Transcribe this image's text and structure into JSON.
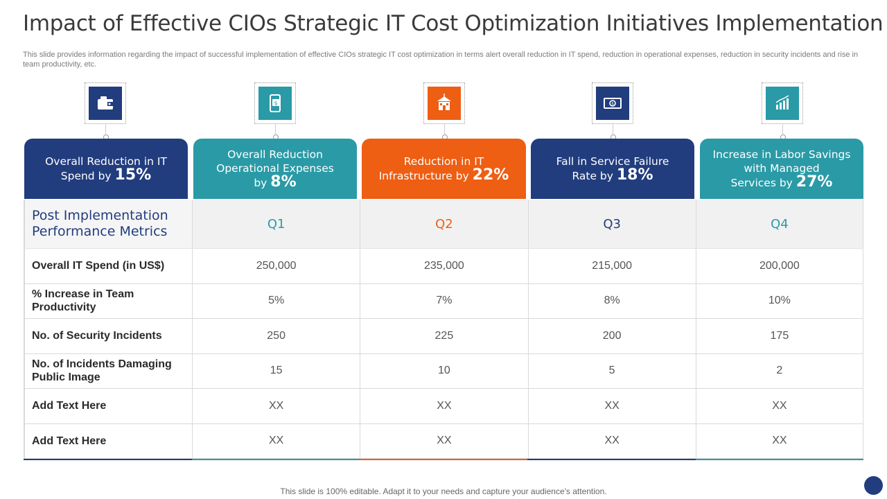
{
  "title": "Impact of Effective CIOs Strategic IT Cost Optimization Initiatives Implementation",
  "subtitle": "This slide provides information regarding the impact of successful implementation of effective  CIOs strategic IT  cost optimization in terms alert overall reduction in IT  spend, reduction in operational expenses, reduction in security incidents and rise in team productivity,  etc.",
  "colors": {
    "navy": "#223d7e",
    "teal": "#2a9aa6",
    "orange": "#ee5e13"
  },
  "headers": [
    {
      "icon": "wallet-icon",
      "line1": "Overall Reduction in IT",
      "line2": "Spend by",
      "pct": "15%"
    },
    {
      "icon": "mobile-payment-icon",
      "line1": "Overall Reduction Operational Expenses",
      "line2": "by",
      "pct": "8%"
    },
    {
      "icon": "building-icon",
      "line1": "Reduction in IT",
      "line2": "Infrastructure  by",
      "pct": "22%"
    },
    {
      "icon": "banknote-icon",
      "line1": "Fall in Service Failure",
      "line2": "Rate by",
      "pct": "18%"
    },
    {
      "icon": "bar-chart-icon",
      "line1": "Increase in Labor Savings with Managed",
      "line2": "Services by",
      "pct": "27%"
    }
  ],
  "table": {
    "corner": "Post Implementation Performance Metrics",
    "quarters": [
      "Q1",
      "Q2",
      "Q3",
      "Q4"
    ],
    "rows": [
      {
        "label": "Overall IT Spend (in US$)",
        "values": [
          "250,000",
          "235,000",
          "215,000",
          "200,000"
        ]
      },
      {
        "label": "% Increase in Team Productivity",
        "values": [
          "5%",
          "7%",
          "8%",
          "10%"
        ]
      },
      {
        "label": "No. of Security Incidents",
        "values": [
          "250",
          "225",
          "200",
          "175"
        ]
      },
      {
        "label": "No. of Incidents Damaging Public Image",
        "values": [
          "15",
          "10",
          "5",
          "2"
        ]
      },
      {
        "label": "Add Text Here",
        "values": [
          "XX",
          "XX",
          "XX",
          "XX"
        ]
      },
      {
        "label": "Add Text Here",
        "values": [
          "XX",
          "XX",
          "XX",
          "XX"
        ]
      }
    ]
  },
  "footer": "This slide is 100% editable. Adapt it to your needs and capture your audience's attention."
}
